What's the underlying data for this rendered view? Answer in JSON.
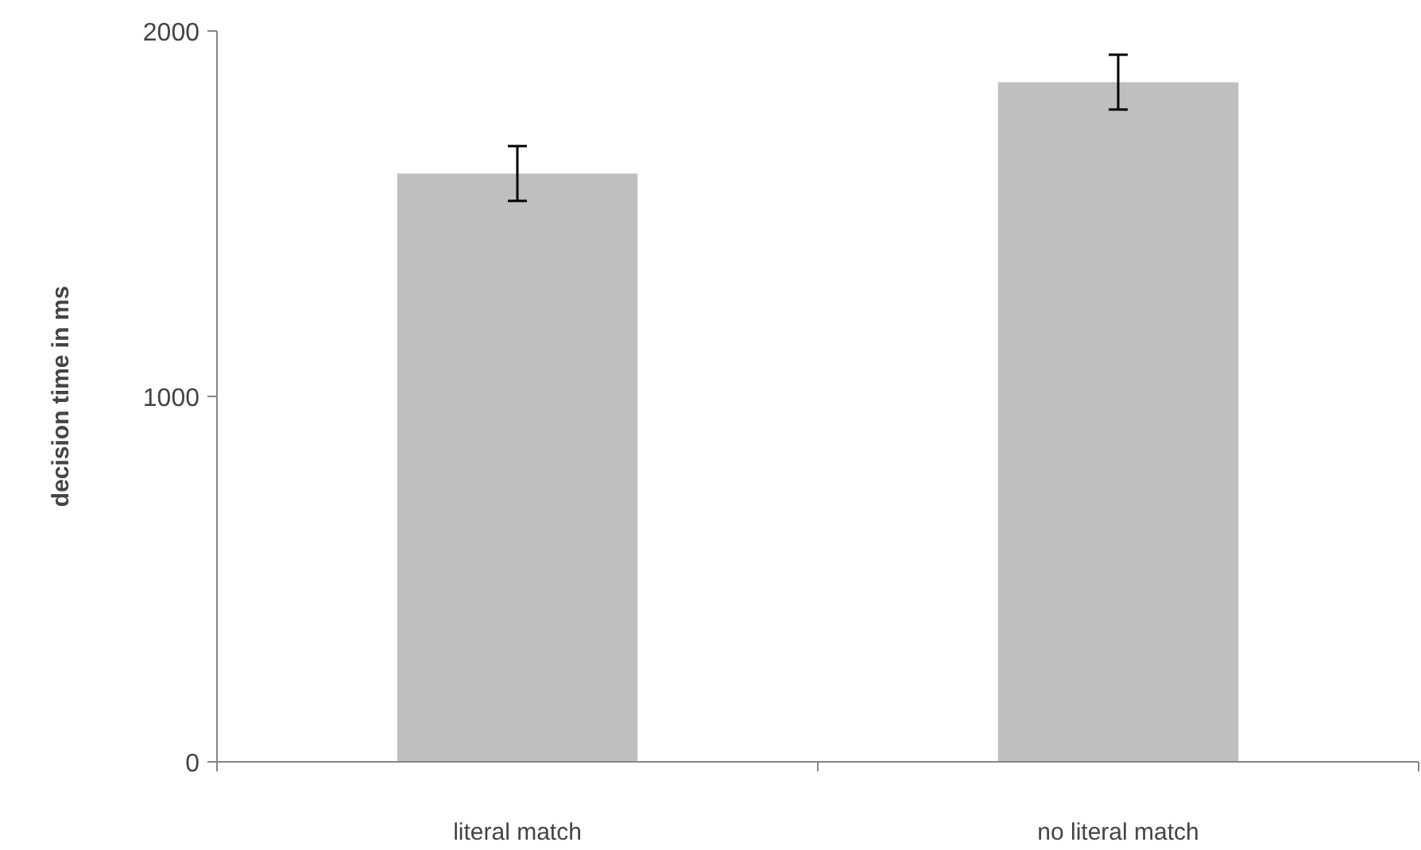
{
  "chart_data": {
    "type": "bar",
    "ylabel": "decision time in ms",
    "categories": [
      "literal match",
      "no literal match"
    ],
    "values": [
      1610,
      1860
    ],
    "errors": [
      75,
      75
    ],
    "color": "#bfbfbf",
    "ylim": [
      0,
      2000
    ],
    "yticks": [
      0,
      1000,
      2000
    ],
    "grid": false
  }
}
